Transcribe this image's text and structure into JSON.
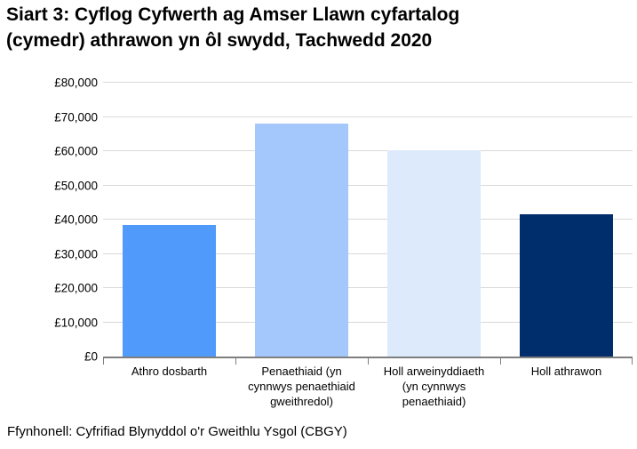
{
  "page": {
    "title_line1": "Siart 3: Cyflog Cyfwerth ag Amser Llawn cyfartalog",
    "title_line2": "(cymedr) athrawon yn ôl swydd, Tachwedd 2020",
    "source": "Ffynhonell: Cyfrifiad Blynyddol o'r Gweithlu Ysgol (CBGY)"
  },
  "colors": {
    "title_text": "#000000",
    "axis_text": "#000000",
    "gridline": "#d9d9d9",
    "axis_line": "#7f7f7f",
    "bar_athro_dosbarth": "#4f9afa",
    "bar_penaethiaid": "#a4c8fb",
    "bar_holl_arweinyddiaeth": "#ddeafc",
    "bar_holl_athrawon": "#002d6b"
  },
  "chart_data": {
    "type": "bar",
    "title": "Siart 3: Cyflog Cyfwerth ag Amser Llawn cyfartalog (cymedr) athrawon yn ôl swydd, Tachwedd 2020",
    "categories": [
      "Athro dosbarth",
      "Penaethiaid (yn cynnwys penaethiaid gweithredol)",
      "Holl arweinyddiaeth (yn cynnwys penaethiaid)",
      "Holl athrawon"
    ],
    "category_slugs": [
      "athro-dosbarth",
      "penaethiaid",
      "holl-arweinyddiaeth",
      "holl-athrawon"
    ],
    "x_tick_label_lines": [
      [
        "Athro dosbarth"
      ],
      [
        "Penaethiaid (yn",
        "cynnwys penaethiaid",
        "gweithredol)"
      ],
      [
        "Holl arweinyddiaeth",
        "(yn cynnwys",
        "penaethiaid)"
      ],
      [
        "Holl athrawon"
      ]
    ],
    "values": [
      38500,
      68000,
      60200,
      41500
    ],
    "bar_colors": [
      "#4f9afa",
      "#a4c8fb",
      "#ddeafc",
      "#002d6b"
    ],
    "xlabel": "",
    "ylabel": "",
    "ylim": [
      0,
      80000
    ],
    "y_tick_interval": 10000,
    "y_tick_labels": [
      "£0",
      "£10,000",
      "£20,000",
      "£30,000",
      "£40,000",
      "£50,000",
      "£60,000",
      "£70,000",
      "£80,000"
    ],
    "grid": true,
    "legend": false,
    "source": "Ffynhonell: Cyfrifiad Blynyddol o'r Gweithlu Ysgol (CBGY)"
  }
}
